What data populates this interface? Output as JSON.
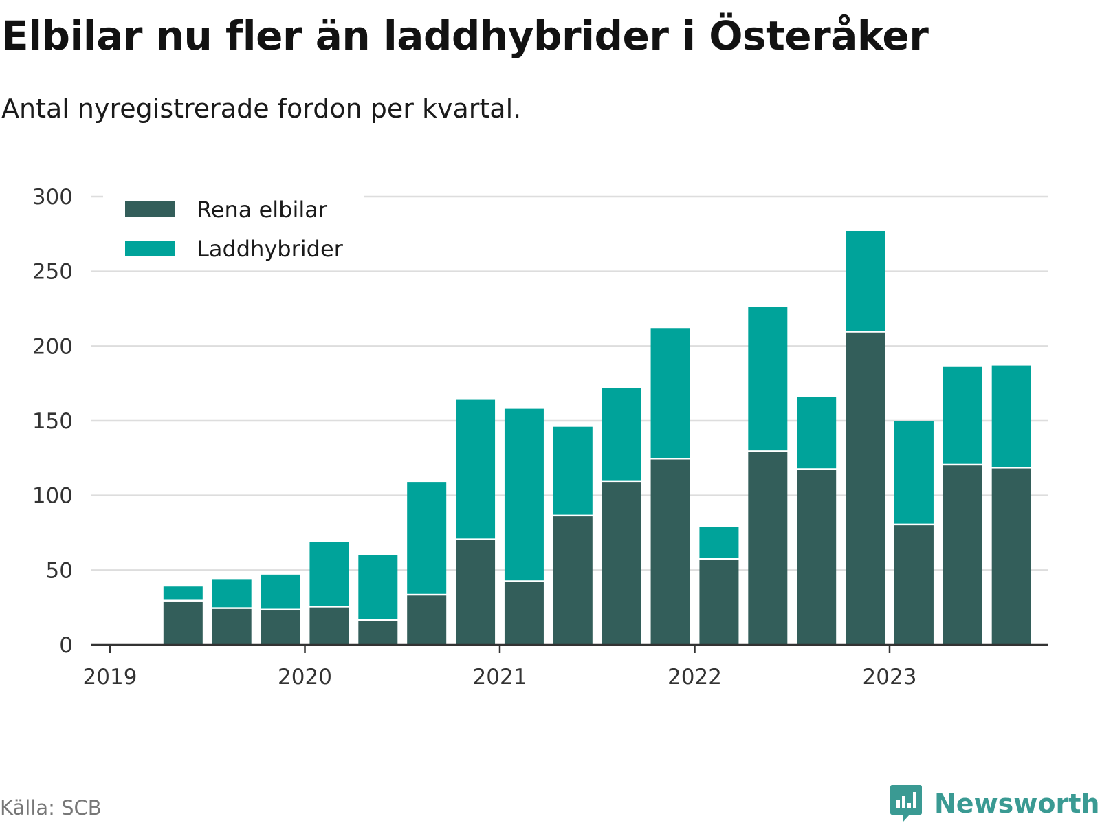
{
  "title": "Elbilar nu fler än laddhybrider i Österåker",
  "subtitle": "Antal nyregistrerade fordon per kvartal.",
  "source": "Källa: SCB",
  "brand": "Newsworthy",
  "colors": {
    "rena_elbilar": "#335e5a",
    "laddhybrider": "#00a39a",
    "grid": "#dddddd",
    "axis": "#333333",
    "brand": "#3a9a93"
  },
  "chart_data": {
    "type": "bar",
    "stacked": true,
    "title": "Elbilar nu fler än laddhybrider i Österåker",
    "subtitle": "Antal nyregistrerade fordon per kvartal.",
    "xlabel": "",
    "ylabel": "",
    "ylim": [
      0,
      300
    ],
    "yticks": [
      0,
      50,
      100,
      150,
      200,
      250,
      300
    ],
    "xticks": [
      "2019",
      "2020",
      "2021",
      "2022",
      "2023"
    ],
    "legend_position": "top-left",
    "grid": true,
    "categories": [
      "2019 Q2",
      "2019 Q3",
      "2019 Q4",
      "2020 Q1",
      "2020 Q2",
      "2020 Q3",
      "2020 Q4",
      "2021 Q1",
      "2021 Q2",
      "2021 Q3",
      "2021 Q4",
      "2022 Q1",
      "2022 Q2",
      "2022 Q3",
      "2022 Q4",
      "2023 Q1",
      "2023 Q2",
      "2023 Q3"
    ],
    "series": [
      {
        "name": "Rena elbilar",
        "values": [
          29,
          24,
          23,
          25,
          16,
          33,
          70,
          42,
          86,
          109,
          124,
          57,
          129,
          117,
          209,
          80,
          120,
          118
        ]
      },
      {
        "name": "Laddhybrider",
        "values": [
          10,
          20,
          24,
          44,
          44,
          76,
          94,
          116,
          60,
          63,
          88,
          22,
          97,
          49,
          68,
          70,
          66,
          69
        ]
      }
    ]
  }
}
